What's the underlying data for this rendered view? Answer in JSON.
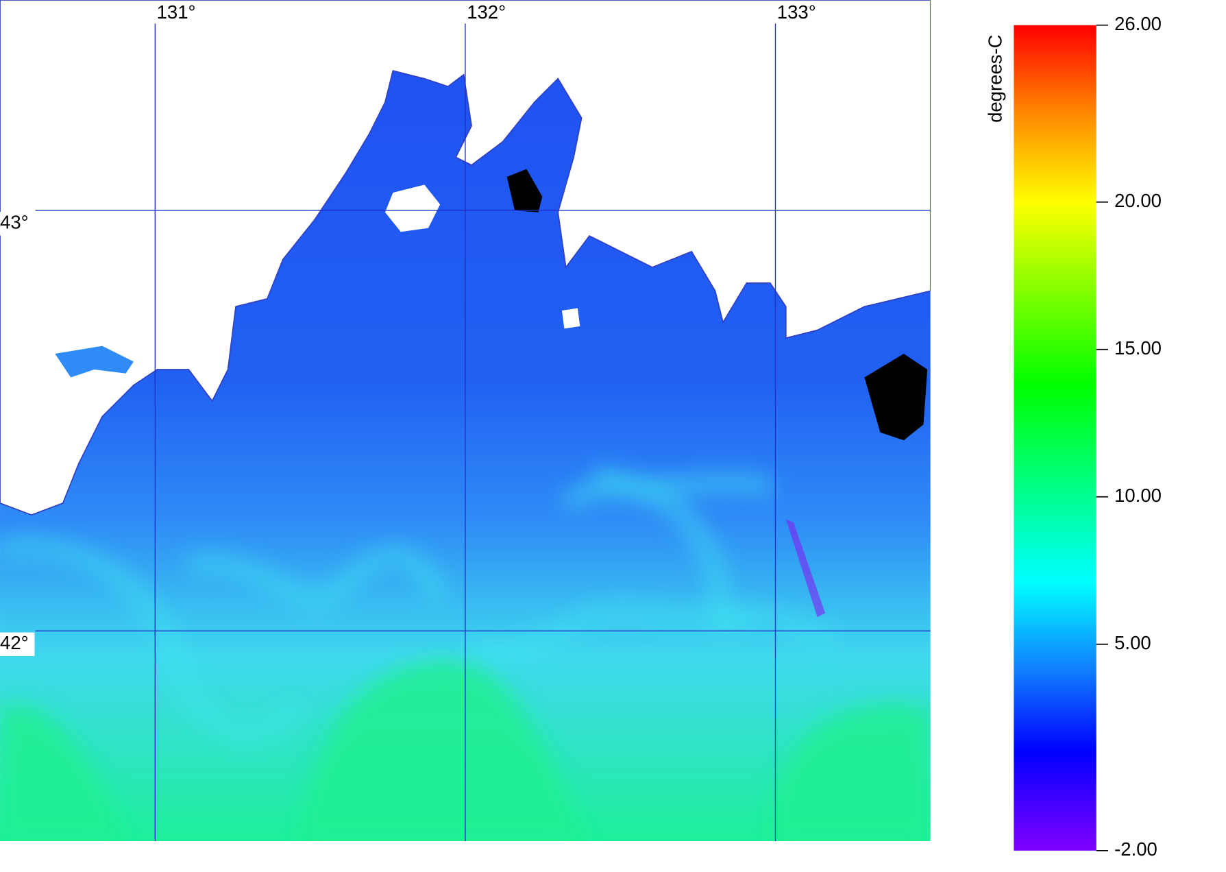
{
  "map": {
    "xlim": [
      130.5,
      133.5
    ],
    "ylim": [
      41.5,
      43.5
    ],
    "lon_ticks": [
      {
        "value": 131,
        "label": "131°"
      },
      {
        "value": 132,
        "label": "132°"
      },
      {
        "value": 133,
        "label": "133°"
      }
    ],
    "lat_ticks": [
      {
        "value": 43,
        "label": "43°"
      },
      {
        "value": 42,
        "label": "42°"
      }
    ]
  },
  "colorbar": {
    "label": "degrees-C",
    "range": [
      -2,
      26
    ],
    "ticks": [
      {
        "value": 26,
        "label": "26.00"
      },
      {
        "value": 20,
        "label": "20.00"
      },
      {
        "value": 15,
        "label": "15.00"
      },
      {
        "value": 10,
        "label": "10.00"
      },
      {
        "value": 5,
        "label": "5.00"
      },
      {
        "value": -2,
        "label": "-2.00"
      }
    ]
  }
}
